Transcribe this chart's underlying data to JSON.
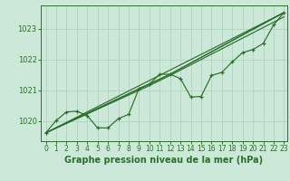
{
  "title": "Graphe pression niveau de la mer (hPa)",
  "bg_color": "#cbe8d8",
  "grid_color": "#b0d4c0",
  "line_color": "#2d6e2d",
  "xlim": [
    -0.5,
    23.3
  ],
  "ylim": [
    1019.35,
    1023.75
  ],
  "yticks": [
    1020,
    1021,
    1022,
    1023
  ],
  "xticks": [
    0,
    1,
    2,
    3,
    4,
    5,
    6,
    7,
    8,
    9,
    10,
    11,
    12,
    13,
    14,
    15,
    16,
    17,
    18,
    19,
    20,
    21,
    22,
    23
  ],
  "x": [
    0,
    1,
    2,
    3,
    4,
    5,
    6,
    7,
    8,
    9,
    10,
    11,
    12,
    13,
    14,
    15,
    16,
    17,
    18,
    19,
    20,
    21,
    22,
    23
  ],
  "main_y": [
    1019.62,
    1020.02,
    1020.3,
    1020.32,
    1020.18,
    1019.78,
    1019.78,
    1020.08,
    1020.22,
    1021.06,
    1021.2,
    1021.52,
    1021.52,
    1021.38,
    1020.78,
    1020.8,
    1021.48,
    1021.58,
    1021.92,
    1022.22,
    1022.32,
    1022.52,
    1023.12,
    1023.52
  ],
  "trend1_x": [
    0,
    23
  ],
  "trend1_y": [
    1019.62,
    1023.52
  ],
  "trend2_x": [
    0,
    10,
    12,
    23
  ],
  "trend2_y": [
    1019.62,
    1021.2,
    1021.52,
    1023.52
  ],
  "trend3_x": [
    0,
    10,
    12,
    23
  ],
  "trend3_y": [
    1019.62,
    1021.15,
    1021.48,
    1023.38
  ],
  "trend4_x": [
    0,
    12,
    23
  ],
  "trend4_y": [
    1019.62,
    1021.52,
    1023.52
  ],
  "title_fontsize": 7,
  "tick_fontsize": 5.5
}
